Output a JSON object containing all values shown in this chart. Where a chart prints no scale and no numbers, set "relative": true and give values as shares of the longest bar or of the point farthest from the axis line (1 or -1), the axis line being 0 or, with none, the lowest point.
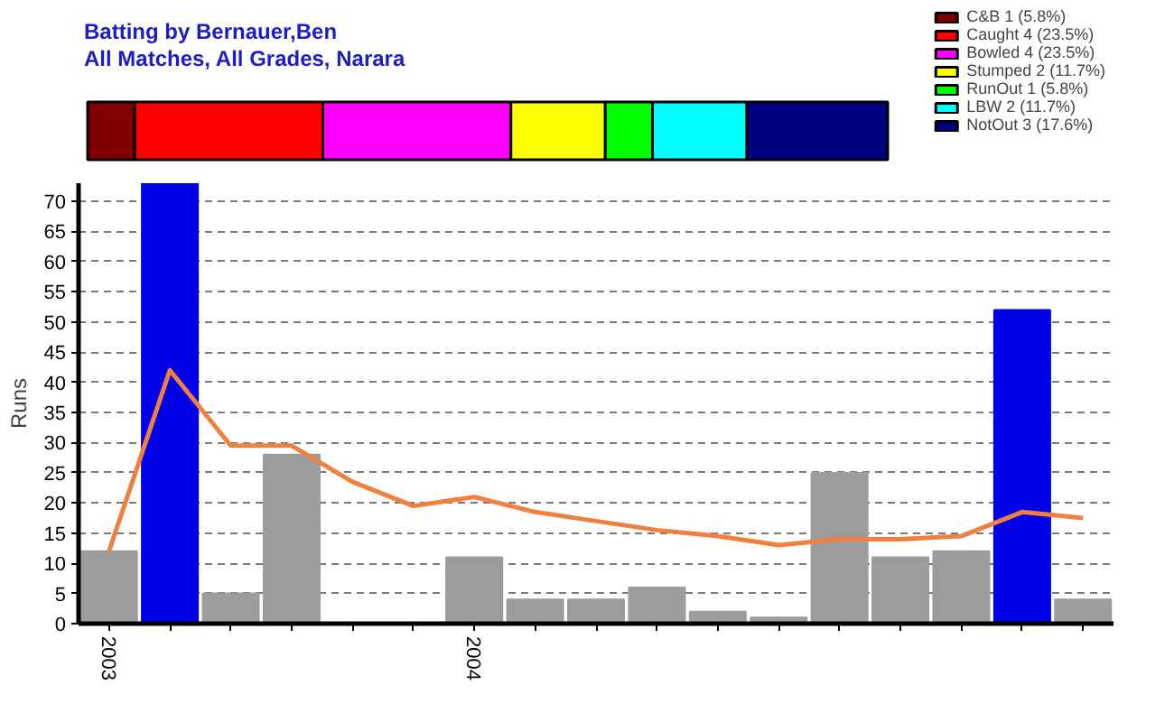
{
  "chart_data": [
    {
      "type": "bar",
      "title": "Batting by Bernauer,Ben",
      "subtitle": "All Matches, All Grades, Narara",
      "orientation": "horizontal",
      "stacked": true,
      "relative": true,
      "categories": [
        null
      ],
      "legend": "top right",
      "series": [
        {
          "name": "C&B 1 (5.8%)",
          "color": "#800000",
          "values": [
            0.059
          ]
        },
        {
          "name": "Caught 4 (23.5%)",
          "color": "#ff0000",
          "values": [
            0.235
          ]
        },
        {
          "name": "Bowled 4 (23.5%)",
          "color": "#ff00ff",
          "values": [
            0.235
          ]
        },
        {
          "name": "Stumped 2 (11.7%)",
          "color": "#ffff00",
          "values": [
            0.118
          ]
        },
        {
          "name": "RunOut 1 (5.8%)",
          "color": "#00ff00",
          "values": [
            0.059
          ]
        },
        {
          "name": "LBW 2 (11.7%)",
          "color": "#00ffff",
          "values": [
            0.118
          ]
        },
        {
          "name": "NotOut 3 (17.6%)",
          "color": "#000080",
          "values": [
            0.176
          ]
        }
      ]
    },
    {
      "type": "bar",
      "ylabel": "Runs",
      "categories": [
        "2003",
        null,
        null,
        null,
        null,
        null,
        "2004",
        null,
        null,
        null,
        null,
        null,
        null,
        null,
        null,
        null,
        null
      ],
      "ylim": [
        0,
        73
      ],
      "yticks": [
        0,
        5,
        10,
        15,
        20,
        25,
        30,
        35,
        40,
        45,
        50,
        55,
        60,
        65,
        70
      ],
      "grid": "y",
      "series": [
        {
          "colors": [
            "#9c9c9c",
            "#0000e6",
            "#9c9c9c",
            "#9c9c9c",
            "#1f6e1f",
            "#1f6e1f",
            "#9c9c9c",
            "#9c9c9c",
            "#9c9c9c",
            "#9c9c9c",
            "#9c9c9c",
            "#9c9c9c",
            "#9c9c9c",
            "#9c9c9c",
            "#9c9c9c",
            "#0000e6",
            "#9c9c9c"
          ],
          "values": [
            12,
            73,
            5,
            28,
            0,
            0,
            11,
            4,
            4,
            6,
            2,
            1,
            25,
            11,
            12,
            52,
            4
          ]
        },
        {
          "type": "line",
          "color": "#f08040",
          "values": [
            12,
            42,
            29.5,
            29.5,
            23.5,
            19.5,
            21,
            18.5,
            17,
            15.5,
            14.5,
            13,
            14,
            14,
            14.5,
            18.5,
            17.5
          ]
        }
      ]
    }
  ]
}
